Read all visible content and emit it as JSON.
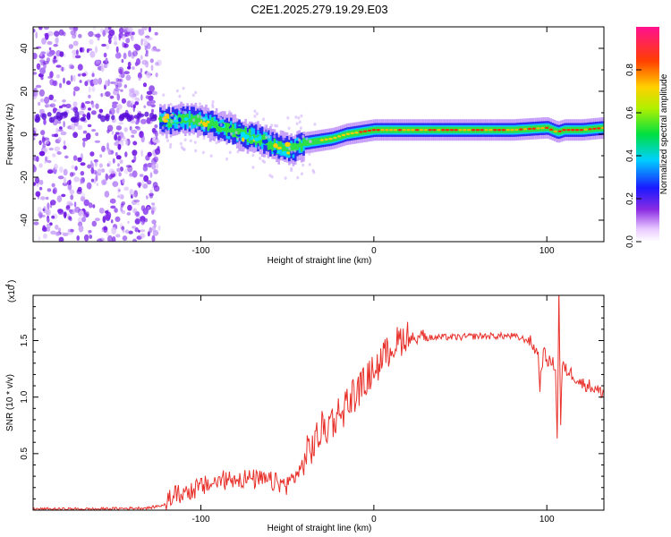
{
  "title": "C2E1.2025.279.19.29.E03",
  "chart_data": [
    {
      "type": "heatmap",
      "name": "spectrogram",
      "xlabel": "Height of straight line (km)",
      "ylabel": "Frequency (Hz)",
      "xlim": [
        -197,
        133
      ],
      "ylim": [
        -50,
        50
      ],
      "xticks": [
        -100,
        0,
        100
      ],
      "yticks": [
        -40,
        -20,
        0,
        20,
        40
      ],
      "ridge": {
        "description": "Doppler track (x km, frequency Hz)",
        "x": [
          -124,
          -112,
          -100,
          -88,
          -76,
          -64,
          -56,
          -48,
          -40,
          -32,
          -24,
          -16,
          -8,
          0,
          20,
          40,
          60,
          80,
          100,
          106,
          110,
          120,
          133
        ],
        "y": [
          6,
          7,
          6,
          3,
          0,
          -3,
          -6,
          -7,
          -4,
          -3,
          -2,
          0,
          1,
          2,
          2,
          2,
          2,
          2,
          3,
          1,
          2,
          2,
          3
        ]
      },
      "noise_region_x": [
        -197,
        -124
      ],
      "colorbar": {
        "label": "Normalized spectral amplitude",
        "range": [
          0,
          1
        ],
        "ticks": [
          "0.0",
          "0.2",
          "0.4",
          "0.6",
          "0.8"
        ]
      }
    },
    {
      "type": "line",
      "name": "snr",
      "xlabel": "Height of straight line (km)",
      "ylabel": "SNR (10 * v/v)",
      "scale_note": "(x10",
      "scale_exp": "4",
      "xlim": [
        -197,
        133
      ],
      "ylim": [
        0,
        1.9
      ],
      "xticks": [
        -100,
        0,
        100
      ],
      "ytick_labels": [
        "0.5",
        "1.0",
        "1.5"
      ],
      "ytick_values": [
        0.5,
        1.0,
        1.5
      ],
      "color": "#e8302a",
      "x": [
        -197,
        -160,
        -130,
        -120,
        -110,
        -100,
        -90,
        -80,
        -70,
        -60,
        -50,
        -40,
        -30,
        -20,
        -10,
        0,
        10,
        20,
        30,
        40,
        50,
        60,
        70,
        80,
        90,
        95,
        96,
        98,
        100,
        105,
        106,
        107,
        108,
        109,
        110,
        115,
        120,
        125,
        130,
        133
      ],
      "y": [
        0.01,
        0.01,
        0.02,
        0.05,
        0.1,
        0.15,
        0.2,
        0.23,
        0.22,
        0.2,
        0.17,
        0.35,
        0.6,
        0.75,
        0.95,
        1.15,
        1.35,
        1.47,
        1.52,
        1.53,
        1.53,
        1.54,
        1.54,
        1.54,
        1.5,
        1.38,
        1.1,
        1.4,
        1.33,
        1.28,
        0.6,
        1.95,
        0.75,
        1.3,
        1.25,
        1.2,
        1.12,
        1.1,
        1.05,
        1.04
      ]
    }
  ]
}
